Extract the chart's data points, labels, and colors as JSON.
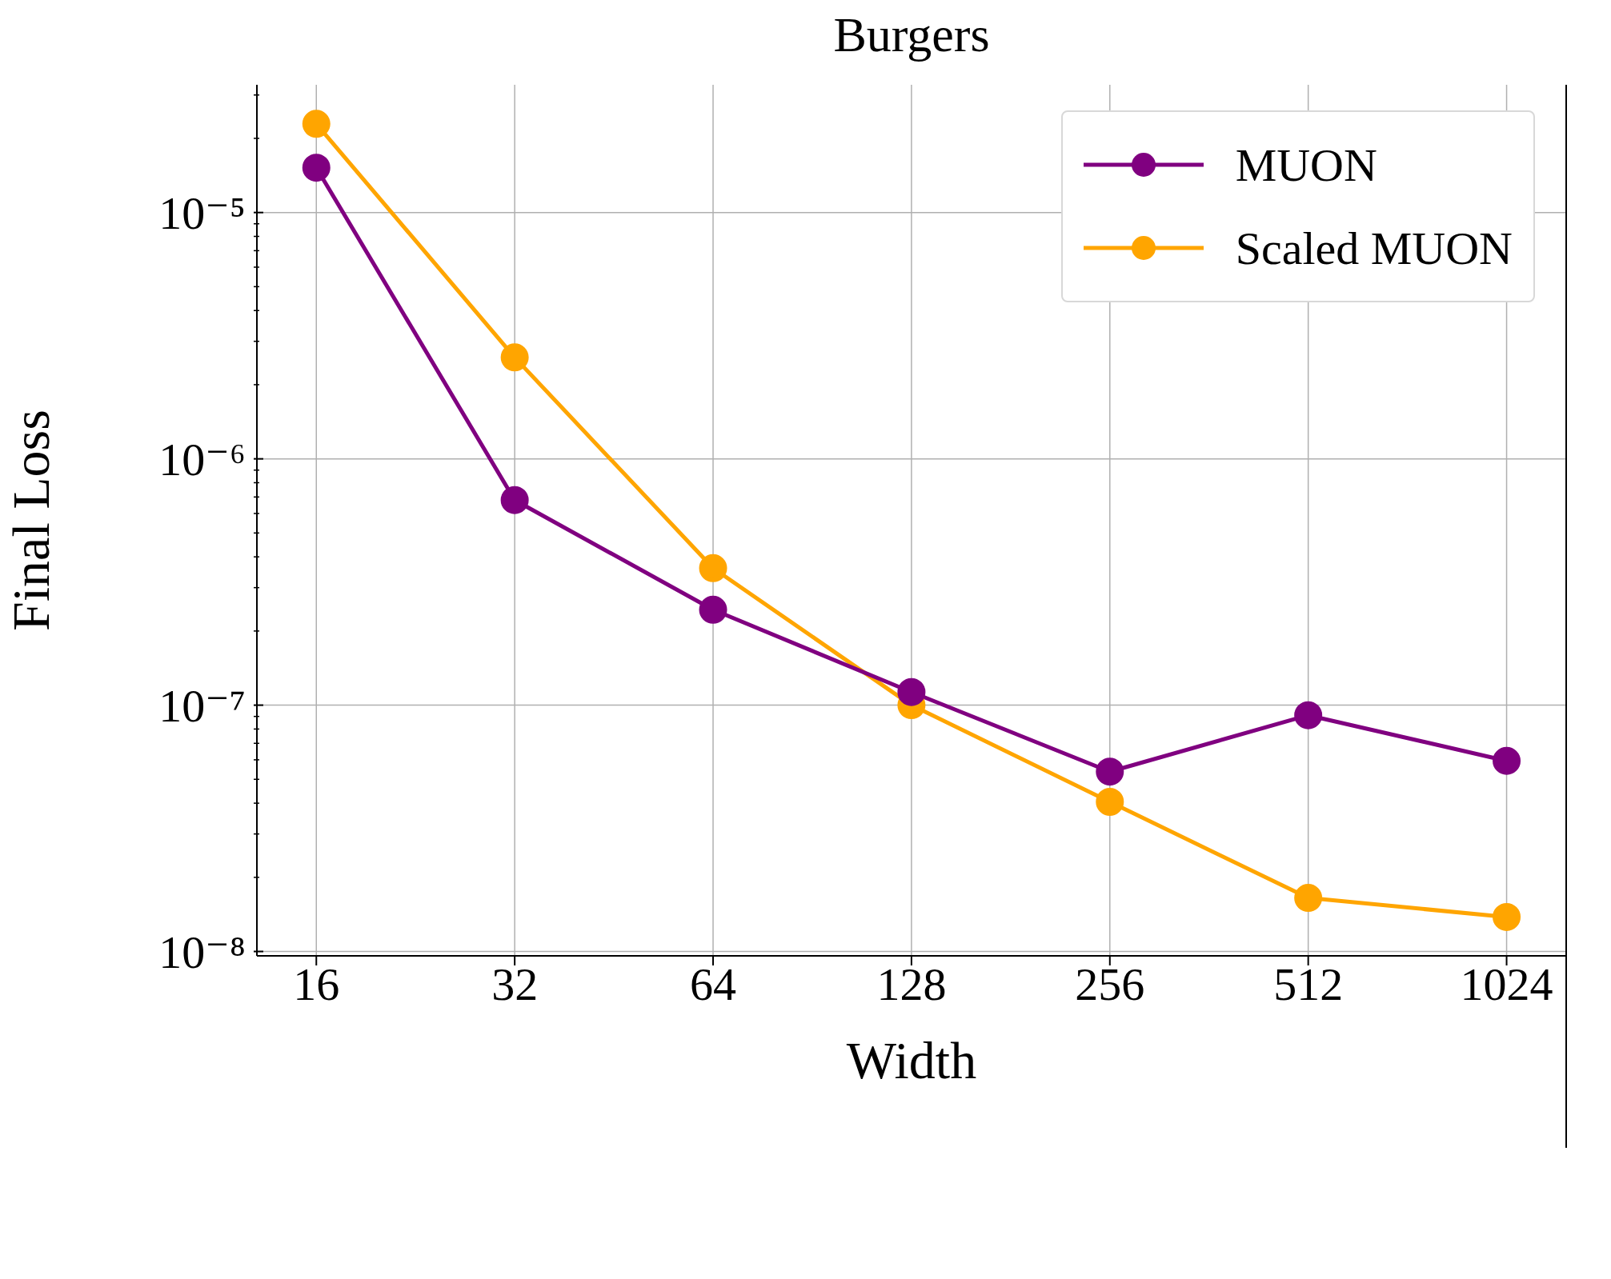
{
  "chart_data": {
    "type": "line",
    "title": "Burgers",
    "xlabel": "Width",
    "ylabel": "Final Loss",
    "x": [
      16,
      32,
      64,
      128,
      256,
      512,
      1024
    ],
    "series": [
      {
        "name": "Scaled MUON",
        "color": "#ffa500",
        "values": [
          2.29e-05,
          2.58e-06,
          3.6e-07,
          1e-07,
          4.05e-08,
          1.65e-08,
          1.38e-08
        ]
      },
      {
        "name": "MUON",
        "color": "#800080",
        "values": [
          1.52e-05,
          6.8e-07,
          2.44e-07,
          1.13e-07,
          5.37e-08,
          9.1e-08,
          5.94e-08
        ]
      }
    ],
    "log": "xy",
    "xlim": [
      13,
      1261
    ],
    "ylim": [
      9.6e-09,
      3.3e-05
    ],
    "xticks": [
      16,
      32,
      64,
      128,
      256,
      512,
      1024
    ],
    "yticks": [
      {
        "value": 1e-08,
        "label": "10⁻⁸"
      },
      {
        "value": 2e-08,
        "label": null
      },
      {
        "value": 3e-08,
        "label": null
      },
      {
        "value": 4e-08,
        "label": null
      },
      {
        "value": 5e-08,
        "label": null
      },
      {
        "value": 6e-08,
        "label": null
      },
      {
        "value": 7e-08,
        "label": null
      },
      {
        "value": 8e-08,
        "label": null
      },
      {
        "value": 9e-08,
        "label": null
      },
      {
        "value": 1e-07,
        "label": "10⁻⁷"
      },
      {
        "value": 2e-07,
        "label": null
      },
      {
        "value": 3e-07,
        "label": null
      },
      {
        "value": 4e-07,
        "label": null
      },
      {
        "value": 5e-07,
        "label": null
      },
      {
        "value": 6e-07,
        "label": null
      },
      {
        "value": 7e-07,
        "label": null
      },
      {
        "value": 8e-07,
        "label": null
      },
      {
        "value": 9e-07,
        "label": null
      },
      {
        "value": 1e-06,
        "label": "10⁻⁶"
      },
      {
        "value": 2e-06,
        "label": null
      },
      {
        "value": 3e-06,
        "label": null
      },
      {
        "value": 4e-06,
        "label": null
      },
      {
        "value": 5e-06,
        "label": null
      },
      {
        "value": 6e-06,
        "label": null
      },
      {
        "value": 7e-06,
        "label": null
      },
      {
        "value": 8e-06,
        "label": null
      },
      {
        "value": 9e-06,
        "label": null
      },
      {
        "value": 1e-05,
        "label": "10⁻⁵"
      },
      {
        "value": 2e-05,
        "label": null
      },
      {
        "value": 3e-05,
        "label": null
      }
    ],
    "grid": true,
    "legend": "top right",
    "marker": "circle",
    "line_style": "solid"
  }
}
